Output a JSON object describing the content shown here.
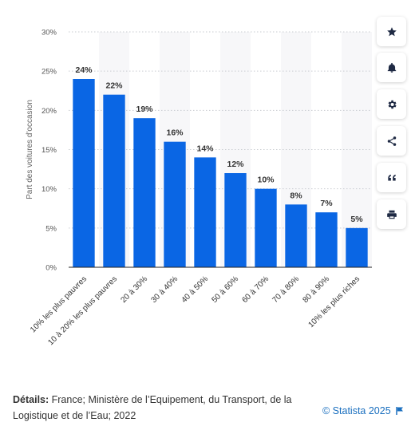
{
  "chart_data": {
    "type": "bar",
    "categories": [
      "10% les plus pauvres",
      "10 à 20% les plus pauvres",
      "20 à 30%",
      "30 à 40%",
      "40 à 50%",
      "50 à 60%",
      "60 à 70%",
      "70 à 80%",
      "80 à 90%",
      "10% les plus riches"
    ],
    "values": [
      24,
      22,
      19,
      16,
      14,
      12,
      10,
      8,
      7,
      5
    ],
    "value_labels": [
      "24%",
      "22%",
      "19%",
      "16%",
      "14%",
      "12%",
      "10%",
      "8%",
      "7%",
      "5%"
    ],
    "ylabel": "Part des voitures d'occasion",
    "xlabel": "",
    "ylim": [
      0,
      30
    ],
    "yticks": [
      "0%",
      "5%",
      "10%",
      "15%",
      "20%",
      "25%",
      "30%"
    ],
    "ytick_values": [
      0,
      5,
      10,
      15,
      20,
      25,
      30
    ],
    "grid": true,
    "bar_color": "#0a66e4"
  },
  "sidebar": {
    "buttons": [
      {
        "name": "favorite-button",
        "icon": "star-icon"
      },
      {
        "name": "notification-button",
        "icon": "bell-icon"
      },
      {
        "name": "settings-button",
        "icon": "gear-icon"
      },
      {
        "name": "share-button",
        "icon": "share-icon"
      },
      {
        "name": "cite-button",
        "icon": "quote-icon"
      },
      {
        "name": "print-button",
        "icon": "printer-icon"
      }
    ]
  },
  "footer": {
    "details_label": "Détails:",
    "details_text": " France; Ministère de l’Equipement, du Transport, de la Logistique et de l’Eau; 2022",
    "copyright": "© Statista 2025"
  },
  "colors": {
    "accent": "#1a6fbf",
    "icon": "#1f2a44"
  }
}
